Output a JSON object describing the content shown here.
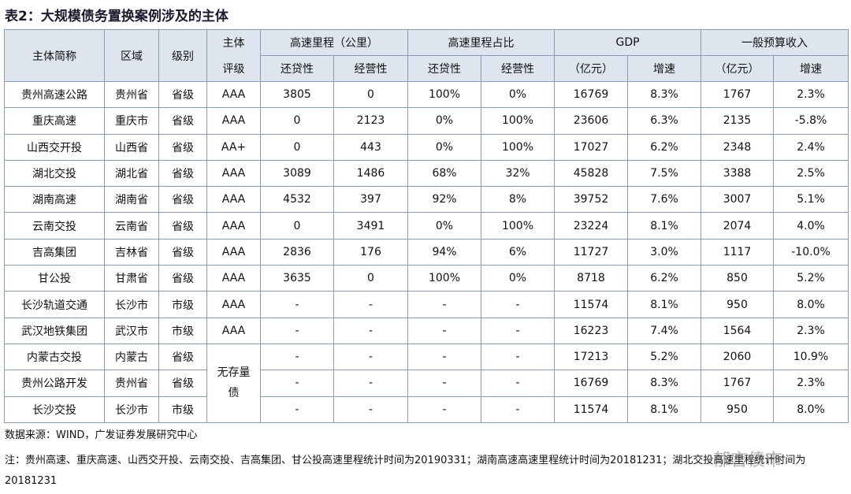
{
  "title": "表2：大规模债务置换案例涉及的主体",
  "table": {
    "header": {
      "name": "主体简称",
      "region": "区域",
      "level": "级别",
      "rating_top": "主体",
      "rating_bottom": "评级",
      "mileage": "高速里程（公里）",
      "share": "高速里程占比",
      "gdp": "GDP",
      "revenue": "一般预算收入",
      "sub": [
        "还贷性",
        "经营性",
        "还贷性",
        "经营性",
        "（亿元）",
        "增速",
        "（亿元）",
        "增速"
      ]
    },
    "rows": [
      [
        "贵州高速公路",
        "贵州省",
        "省级",
        "AAA",
        "3805",
        "0",
        "100%",
        "0%",
        "16769",
        "8.3%",
        "1767",
        "2.3%"
      ],
      [
        "重庆高速",
        "重庆市",
        "省级",
        "AAA",
        "0",
        "2123",
        "0%",
        "100%",
        "23606",
        "6.3%",
        "2135",
        "-5.8%"
      ],
      [
        "山西交开投",
        "山西省",
        "省级",
        "AA+",
        "0",
        "443",
        "0%",
        "100%",
        "17027",
        "6.2%",
        "2348",
        "2.4%"
      ],
      [
        "湖北交投",
        "湖北省",
        "省级",
        "AAA",
        "3089",
        "1486",
        "68%",
        "32%",
        "45828",
        "7.5%",
        "3388",
        "2.5%"
      ],
      [
        "湖南高速",
        "湖南省",
        "省级",
        "AAA",
        "4532",
        "397",
        "92%",
        "8%",
        "39752",
        "7.6%",
        "3007",
        "5.1%"
      ],
      [
        "云南交投",
        "云南省",
        "省级",
        "AAA",
        "0",
        "3491",
        "0%",
        "100%",
        "23224",
        "8.1%",
        "2074",
        "4.0%"
      ],
      [
        "吉高集团",
        "吉林省",
        "省级",
        "AAA",
        "2836",
        "176",
        "94%",
        "6%",
        "11727",
        "3.0%",
        "1117",
        "-10.0%"
      ],
      [
        "甘公投",
        "甘肃省",
        "省级",
        "AAA",
        "3635",
        "0",
        "100%",
        "0%",
        "8718",
        "6.2%",
        "850",
        "5.2%"
      ],
      [
        "长沙轨道交通",
        "长沙市",
        "市级",
        "AAA",
        "-",
        "-",
        "-",
        "-",
        "11574",
        "8.1%",
        "950",
        "8.0%"
      ],
      [
        "武汉地铁集团",
        "武汉市",
        "市级",
        "AAA",
        "-",
        "-",
        "-",
        "-",
        "16223",
        "7.4%",
        "1564",
        "2.3%"
      ],
      [
        "内蒙古交投",
        "内蒙古",
        "省级",
        "-",
        "-",
        "-",
        "-",
        "17213",
        "5.2%",
        "2060",
        "10.9%"
      ],
      [
        "贵州公路开发",
        "贵州省",
        "省级",
        "-",
        "-",
        "-",
        "-",
        "16769",
        "8.3%",
        "1767",
        "2.3%"
      ],
      [
        "长沙交投",
        "长沙市",
        "市级",
        "-",
        "-",
        "-",
        "-",
        "11574",
        "8.1%",
        "950",
        "8.0%"
      ]
    ],
    "merged_rating": "无存量债"
  },
  "source": "数据来源：WIND，广发证券发展研究中心",
  "note": "注：贵州高速、重庆高速、山西交开投、云南交投、吉高集团、甘公投高速里程统计时间为20190331；湖南高速高速里程统计时间为20181231；湖北交投高速里程统计时间为20181231",
  "watermark": "郁言债市"
}
